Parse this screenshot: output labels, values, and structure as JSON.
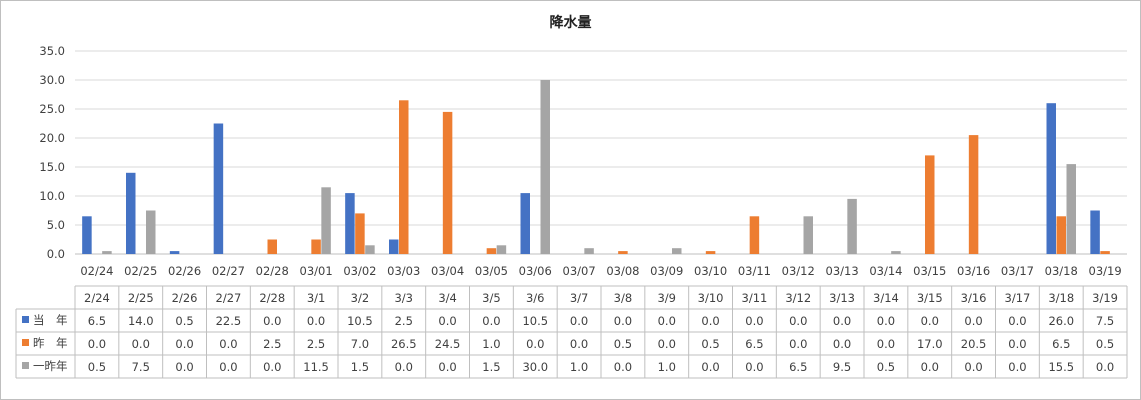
{
  "chart_data": {
    "type": "bar",
    "title": "降水量",
    "xlabel": "",
    "ylabel": "",
    "ylim": [
      0,
      35
    ],
    "yticks": [
      "0.0",
      "5.0",
      "10.0",
      "15.0",
      "20.0",
      "25.0",
      "30.0",
      "35.0"
    ],
    "grid": true,
    "categories": [
      "02/24",
      "02/25",
      "02/26",
      "02/27",
      "02/28",
      "03/01",
      "03/02",
      "03/03",
      "03/04",
      "03/05",
      "03/06",
      "03/07",
      "03/08",
      "03/09",
      "03/10",
      "03/11",
      "03/12",
      "03/13",
      "03/14",
      "03/15",
      "03/16",
      "03/17",
      "03/18",
      "03/19"
    ],
    "table_headers": [
      "2/24",
      "2/25",
      "2/26",
      "2/27",
      "2/28",
      "3/1",
      "3/2",
      "3/3",
      "3/4",
      "3/5",
      "3/6",
      "3/7",
      "3/8",
      "3/9",
      "3/10",
      "3/11",
      "3/12",
      "3/13",
      "3/14",
      "3/15",
      "3/16",
      "3/17",
      "3/18",
      "3/19"
    ],
    "series": [
      {
        "name": "当　年",
        "color": "#4472c4",
        "values": [
          6.5,
          14.0,
          0.5,
          22.5,
          0.0,
          0.0,
          10.5,
          2.5,
          0.0,
          0.0,
          10.5,
          0.0,
          0.0,
          0.0,
          0.0,
          0.0,
          0.0,
          0.0,
          0.0,
          0.0,
          0.0,
          0.0,
          26.0,
          7.5
        ]
      },
      {
        "name": "昨　年",
        "color": "#ed7d31",
        "values": [
          0.0,
          0.0,
          0.0,
          0.0,
          2.5,
          2.5,
          7.0,
          26.5,
          24.5,
          1.0,
          0.0,
          0.0,
          0.5,
          0.0,
          0.5,
          6.5,
          0.0,
          0.0,
          0.0,
          17.0,
          20.5,
          0.0,
          6.5,
          0.5
        ]
      },
      {
        "name": "一昨年",
        "color": "#a5a5a5",
        "values": [
          0.5,
          7.5,
          0.0,
          0.0,
          0.0,
          11.5,
          1.5,
          0.0,
          0.0,
          1.5,
          30.0,
          1.0,
          0.0,
          1.0,
          0.0,
          0.0,
          6.5,
          9.5,
          0.5,
          0.0,
          0.0,
          0.0,
          15.5,
          0.0
        ]
      }
    ]
  }
}
